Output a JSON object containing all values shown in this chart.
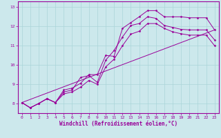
{
  "background_color": "#cce8ec",
  "line_color": "#990099",
  "grid_color": "#aad4d8",
  "xlim": [
    -0.5,
    23.5
  ],
  "ylim": [
    7.5,
    13.3
  ],
  "yticks": [
    8,
    9,
    10,
    11,
    12,
    13
  ],
  "xticks": [
    0,
    1,
    2,
    3,
    4,
    5,
    6,
    7,
    8,
    9,
    10,
    11,
    12,
    13,
    14,
    15,
    16,
    17,
    18,
    19,
    20,
    21,
    22,
    23
  ],
  "xlabel": "Windchill (Refroidissement éolien,°C)",
  "tick_fontsize": 4.5,
  "xlabel_fontsize": 5.5,
  "lines": [
    {
      "x": [
        0,
        1,
        2,
        3,
        4,
        5,
        6,
        7,
        8,
        9,
        10,
        11,
        12,
        13,
        14,
        15,
        16,
        17,
        18,
        19,
        20,
        21,
        22,
        23
      ],
      "y": [
        8.05,
        7.78,
        8.0,
        8.25,
        8.05,
        8.7,
        8.8,
        9.05,
        9.5,
        9.5,
        10.5,
        10.45,
        11.9,
        12.2,
        12.5,
        12.82,
        12.82,
        12.5,
        12.5,
        12.5,
        12.45,
        12.45,
        12.45,
        11.82
      ],
      "marker": true
    },
    {
      "x": [
        0,
        1,
        2,
        3,
        4,
        5,
        6,
        7,
        8,
        9,
        10,
        11,
        12,
        13,
        14,
        15,
        16,
        17,
        18,
        19,
        20,
        21,
        22,
        23
      ],
      "y": [
        8.05,
        7.78,
        8.0,
        8.25,
        8.05,
        8.6,
        8.7,
        9.35,
        9.45,
        9.1,
        10.25,
        10.75,
        11.45,
        12.05,
        12.15,
        12.5,
        12.42,
        12.05,
        11.95,
        11.85,
        11.82,
        11.82,
        11.82,
        11.3
      ],
      "marker": true
    },
    {
      "x": [
        0,
        1,
        2,
        3,
        4,
        5,
        6,
        7,
        8,
        9,
        10,
        11,
        12,
        13,
        14,
        15,
        16,
        17,
        18,
        19,
        20,
        21,
        22,
        23
      ],
      "y": [
        8.05,
        7.78,
        8.0,
        8.25,
        8.05,
        8.5,
        8.6,
        8.85,
        9.2,
        9.0,
        9.9,
        10.3,
        11.0,
        11.6,
        11.75,
        12.15,
        12.15,
        11.9,
        11.72,
        11.62,
        11.55,
        11.55,
        11.55,
        11.0
      ],
      "marker": true
    },
    {
      "x": [
        0,
        23
      ],
      "y": [
        8.05,
        11.82
      ],
      "marker": false
    }
  ]
}
